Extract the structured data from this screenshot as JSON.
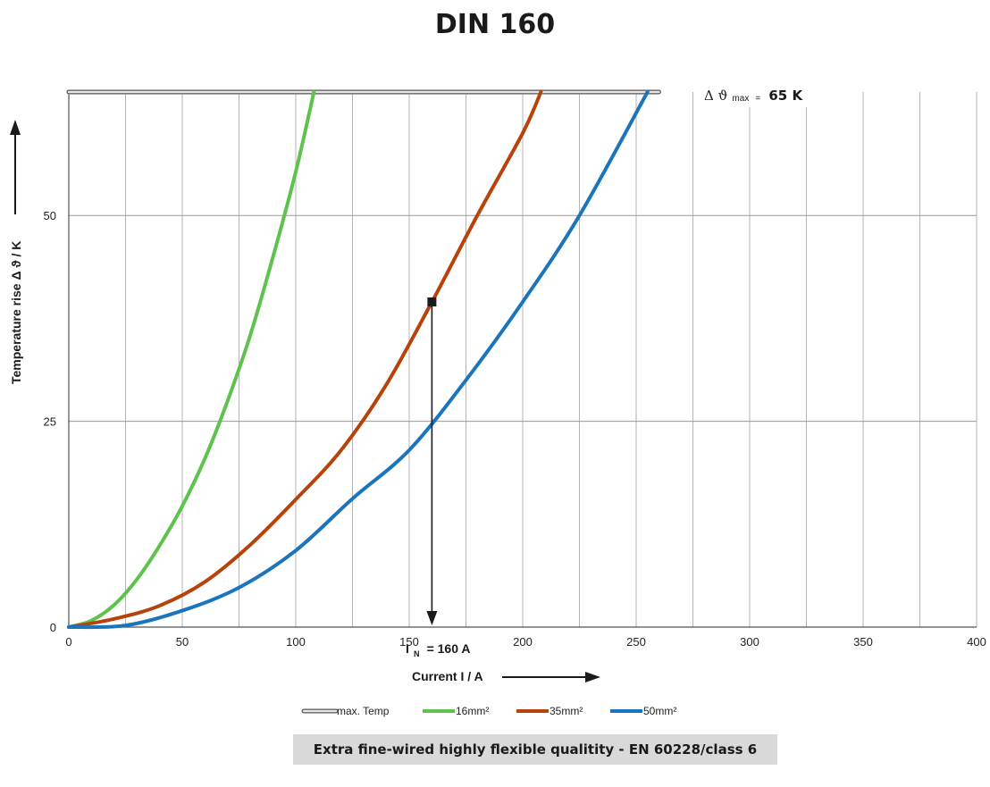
{
  "chart_data": {
    "type": "line",
    "title": "DIN 160",
    "xlabel": "Current I / A",
    "ylabel": "Temperature rise Δ ϑ / K",
    "xlim": [
      0,
      400
    ],
    "ylim": [
      0,
      65
    ],
    "x_ticks": [
      "0",
      "50",
      "100",
      "150",
      "200",
      "250",
      "300",
      "350",
      "400"
    ],
    "y_ticks": [
      "0",
      "25",
      "50"
    ],
    "grid": true,
    "legend_position": "bottom",
    "max_temp_label": {
      "prefix": "Δ ϑ",
      "subscript": "max",
      "eq": "=",
      "value": "65 K"
    },
    "marker_annotation": {
      "label_main": "I",
      "label_sub": "N",
      "label_rest": "= 160 A",
      "x": 160,
      "y": 39.5
    },
    "series": [
      {
        "name": "max. Temp",
        "color": "#bfbfbf",
        "points": [
          [
            0,
            65
          ],
          [
            260,
            65
          ]
        ]
      },
      {
        "name": "16mm²",
        "color": "#5fc24f",
        "points": [
          [
            0,
            0
          ],
          [
            10,
            0.8
          ],
          [
            20,
            2.7
          ],
          [
            30,
            5.8
          ],
          [
            40,
            9.9
          ],
          [
            50,
            14.7
          ],
          [
            60,
            20.5
          ],
          [
            70,
            27.5
          ],
          [
            80,
            35.5
          ],
          [
            90,
            45
          ],
          [
            100,
            55.3
          ],
          [
            108,
            65
          ]
        ]
      },
      {
        "name": "35mm²",
        "color": "#b8420a",
        "points": [
          [
            0,
            0
          ],
          [
            20,
            1
          ],
          [
            40,
            2.6
          ],
          [
            60,
            5.5
          ],
          [
            80,
            10
          ],
          [
            100,
            15.5
          ],
          [
            120,
            21.5
          ],
          [
            140,
            29.5
          ],
          [
            160,
            39.5
          ],
          [
            180,
            50
          ],
          [
            200,
            60
          ],
          [
            208,
            65
          ]
        ]
      },
      {
        "name": "50mm²",
        "color": "#1a75bc",
        "points": [
          [
            0,
            0
          ],
          [
            25,
            0.2
          ],
          [
            50,
            2
          ],
          [
            75,
            4.8
          ],
          [
            100,
            9.3
          ],
          [
            125,
            15.6
          ],
          [
            150,
            21.5
          ],
          [
            175,
            30
          ],
          [
            200,
            39.5
          ],
          [
            225,
            50
          ],
          [
            255,
            65
          ]
        ]
      }
    ]
  },
  "footer": {
    "note": "Extra fine-wired highly flexible qualitity - EN 60228/class 6"
  }
}
